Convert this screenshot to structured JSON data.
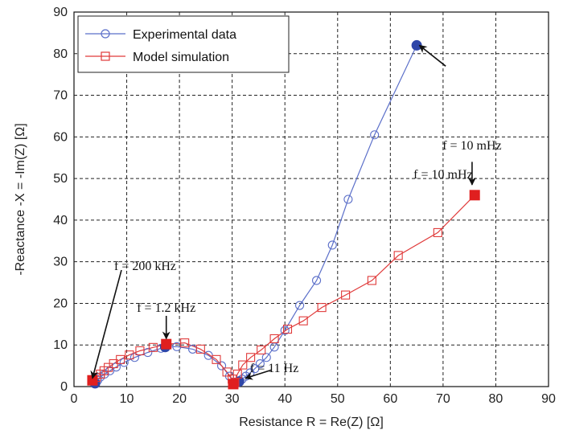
{
  "chart_data": {
    "type": "line",
    "title": "",
    "xlabel": "Resistance R = Re(Z) [Ω]",
    "ylabel": "-Reactance -X = -Im(Z) [Ω]",
    "xlim": [
      0,
      90
    ],
    "ylim": [
      0,
      90
    ],
    "xticks": [
      0,
      10,
      20,
      30,
      40,
      50,
      60,
      70,
      80,
      90
    ],
    "yticks": [
      0,
      10,
      20,
      30,
      40,
      50,
      60,
      70,
      80,
      90
    ],
    "grid": true,
    "grid_style": "dashed",
    "legend_position": "top-left",
    "series": [
      {
        "name": "Experimental data",
        "color": "#5b6fc9",
        "marker": "circle",
        "x": [
          4,
          4.5,
          5,
          5.8,
          6.8,
          8,
          9.5,
          11.5,
          14,
          16.5,
          17.3,
          19.5,
          22.5,
          25.5,
          28,
          29.5,
          30.3,
          30.8,
          31.3,
          31.9,
          32.6,
          33.4,
          34.3,
          35.3,
          36.5,
          38,
          40,
          42.8,
          46,
          49,
          52,
          57,
          65
        ],
        "y": [
          0.8,
          1.5,
          2.3,
          3,
          3.8,
          4.7,
          5.8,
          7,
          8.2,
          9.2,
          9.5,
          9.6,
          9,
          7.5,
          5,
          2.5,
          1,
          0.8,
          1.2,
          1.8,
          2.5,
          3.3,
          4.3,
          5.5,
          7,
          9.5,
          13.5,
          19.5,
          25.5,
          34,
          45,
          60.5,
          82
        ],
        "highlighted": [
          [
            4,
            0.8
          ],
          [
            17.3,
            9.5
          ],
          [
            31.3,
            1.2
          ],
          [
            65,
            82
          ]
        ]
      },
      {
        "name": "Model simulation",
        "color": "#e03a3a",
        "marker": "square",
        "x": [
          3.5,
          4.2,
          5,
          5.7,
          6.5,
          7.5,
          8.8,
          10.5,
          12.5,
          15,
          17.5,
          21,
          24,
          27,
          29,
          30,
          30.5,
          31,
          32,
          33.5,
          35.5,
          38,
          40.5,
          43.5,
          47,
          51.5,
          56.5,
          61.5,
          69,
          76
        ],
        "y": [
          1.5,
          2.2,
          3,
          3.8,
          4.6,
          5.5,
          6.5,
          7.6,
          8.6,
          9.4,
          10.2,
          10.5,
          9,
          6.5,
          3.5,
          1.8,
          1,
          3,
          5.2,
          7,
          8.8,
          11.5,
          13.8,
          15.8,
          19,
          22,
          25.5,
          31.5,
          37,
          46
        ],
        "highlighted": [
          [
            3.5,
            1.5
          ],
          [
            17.5,
            10.2
          ],
          [
            30.2,
            0.6
          ],
          [
            76,
            46
          ]
        ]
      }
    ],
    "annotations": [
      {
        "text": "f = 10 mHz",
        "label_at": [
          70,
          50
        ],
        "arrow_from": [
          70.5,
          77
        ],
        "arrow_to": [
          65.5,
          82
        ]
      },
      {
        "text": "f = 10 mHz",
        "label_at": [
          75.5,
          57
        ],
        "arrow_from": [
          75.5,
          54
        ],
        "arrow_to": [
          75.5,
          48.5
        ]
      },
      {
        "text": "f = 200 kHz",
        "label_at": [
          13.5,
          28
        ],
        "arrow_from": [
          9,
          28
        ],
        "arrow_to": [
          3.5,
          2
        ]
      },
      {
        "text": "f = 1.2 kHz",
        "label_at": [
          17.5,
          18
        ],
        "arrow_from": [
          17.5,
          17
        ],
        "arrow_to": [
          17.5,
          11.5
        ]
      },
      {
        "text": "f = 11 Hz",
        "label_at": [
          38,
          3.5
        ],
        "arrow_from": [
          37.5,
          4
        ],
        "arrow_to": [
          32.5,
          2
        ]
      }
    ]
  }
}
